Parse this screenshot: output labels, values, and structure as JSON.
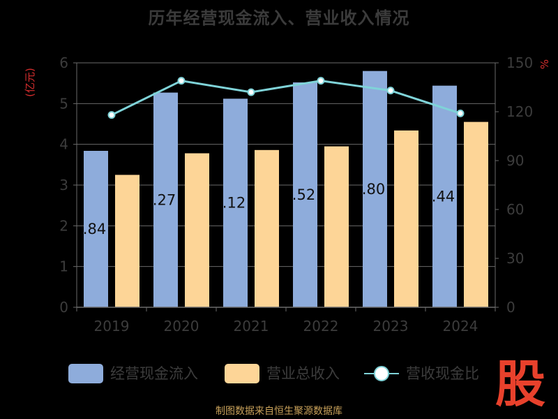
{
  "title": "历年经营现金流入、营业收入情况",
  "source": "制图数据来自恒生聚源数据库",
  "logo_text": "股",
  "colors": {
    "cash_bar": "#8eacdb",
    "revenue_bar": "#fdd597",
    "ratio_line": "#7fd3d8",
    "axis_text": "#3c3c3c",
    "grid": "#6a6a6a",
    "unit_text": "#d62e2e",
    "bar_label": "#111111"
  },
  "chart_data": {
    "type": "bar",
    "categories": [
      "2019",
      "2020",
      "2021",
      "2022",
      "2023",
      "2024"
    ],
    "left_axis": {
      "unit": "(亿元)",
      "ylim": [
        0,
        6
      ],
      "ticks": [
        "0",
        "1",
        "2",
        "3",
        "4",
        "5",
        "6"
      ]
    },
    "right_axis": {
      "unit": "%",
      "ylim": [
        0,
        150
      ],
      "ticks": [
        "0",
        "30",
        "60",
        "90",
        "120",
        "150"
      ]
    },
    "series": [
      {
        "name": "经营现金流入",
        "kind": "bar",
        "axis": "left",
        "values": [
          3.84,
          5.27,
          5.12,
          5.52,
          5.8,
          5.44
        ],
        "labels": [
          ".84",
          ".27",
          ".12",
          ".52",
          ".80",
          ".44"
        ]
      },
      {
        "name": "营业总收入",
        "kind": "bar",
        "axis": "left",
        "values": [
          3.25,
          3.78,
          3.86,
          3.95,
          4.34,
          4.55
        ]
      },
      {
        "name": "营收现金比",
        "kind": "line",
        "axis": "right",
        "values": [
          118,
          139,
          132,
          139,
          133,
          119
        ]
      }
    ],
    "legend": {
      "position": "bottom",
      "labels": [
        "经营现金流入",
        "营业总收入",
        "营收现金比"
      ]
    }
  }
}
